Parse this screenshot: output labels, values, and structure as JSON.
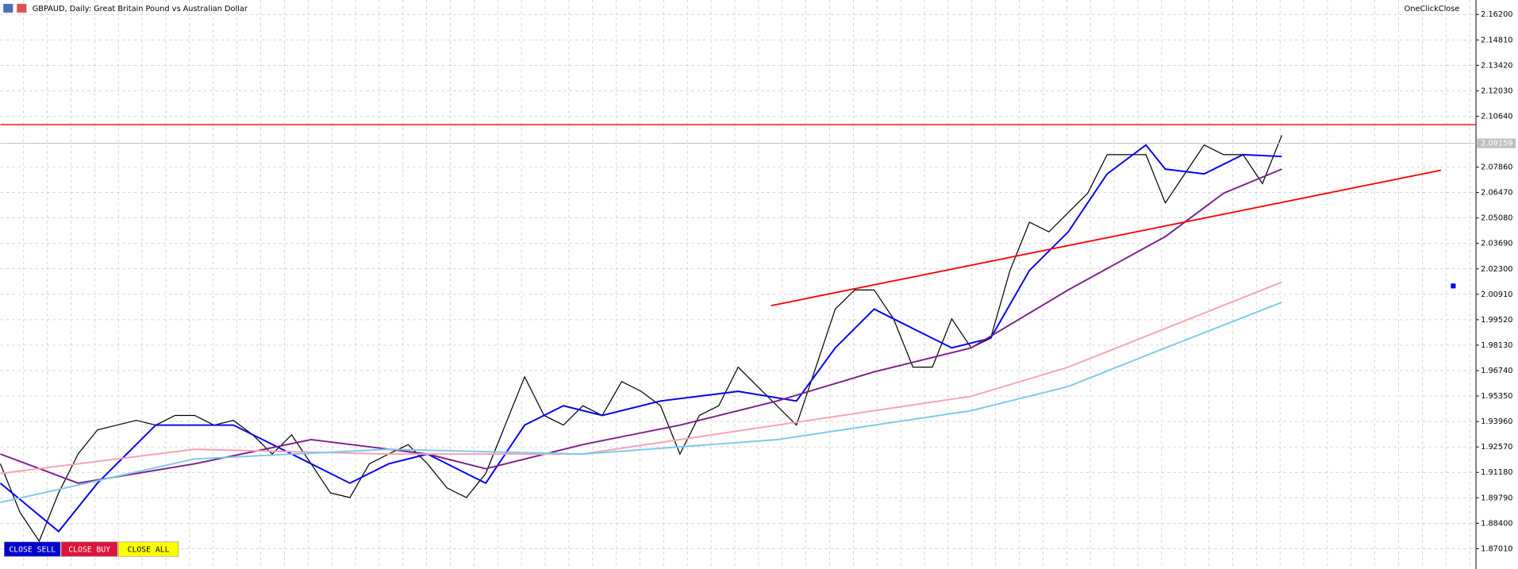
{
  "header": {
    "title": "GBPAUD, Daily:  Great Britain Pound vs Australian Dollar",
    "plugin": "OneClickClose"
  },
  "buttons": [
    "CLOSE SELL",
    "CLOSE BUY",
    "CLOSE ALL"
  ],
  "chart_data": {
    "type": "line",
    "xlim": [
      0,
      76
    ],
    "ylim": [
      1.859,
      2.1699
    ],
    "yticks": [
      {
        "value": 2.162,
        "label": "2.16200"
      },
      {
        "value": 2.1481,
        "label": "2.14810"
      },
      {
        "value": 2.1342,
        "label": "2.13420"
      },
      {
        "value": 2.1203,
        "label": "2.12030"
      },
      {
        "value": 2.1064,
        "label": "2.10640"
      },
      {
        "value": 2.0786,
        "label": "2.07860"
      },
      {
        "value": 2.0647,
        "label": "2.06470"
      },
      {
        "value": 2.0508,
        "label": "2.05080"
      },
      {
        "value": 2.0369,
        "label": "2.03690"
      },
      {
        "value": 2.023,
        "label": "2.02300"
      },
      {
        "value": 2.0091,
        "label": "2.00910"
      },
      {
        "value": 1.9952,
        "label": "1.99520"
      },
      {
        "value": 1.9813,
        "label": "1.98130"
      },
      {
        "value": 1.9674,
        "label": "1.96740"
      },
      {
        "value": 1.9535,
        "label": "1.95350"
      },
      {
        "value": 1.9396,
        "label": "1.93960"
      },
      {
        "value": 1.9257,
        "label": "1.92570"
      },
      {
        "value": 1.9118,
        "label": "1.91180"
      },
      {
        "value": 1.8979,
        "label": "1.89790"
      },
      {
        "value": 1.884,
        "label": "1.88400"
      },
      {
        "value": 1.8701,
        "label": "1.87010"
      }
    ],
    "grid": true,
    "current_price": {
      "value": 2.09159,
      "label": "2.09159"
    },
    "levels": [
      {
        "value": 2.1018,
        "color": "#ff0000"
      }
    ],
    "trendline": {
      "x": [
        39.7,
        74.2
      ],
      "values": [
        2.0029,
        2.0769
      ],
      "color": "#ff0000"
    },
    "series": [
      {
        "color": "#000000",
        "x": [
          0,
          1,
          2,
          3,
          4,
          5,
          6,
          7,
          8,
          9,
          10,
          11,
          12,
          13,
          14,
          15,
          16,
          17,
          18,
          19,
          20,
          21,
          22,
          23,
          24,
          25,
          26,
          27,
          28,
          29,
          30,
          31,
          32,
          33,
          34,
          35,
          36,
          37,
          38,
          39,
          40,
          41,
          42,
          43,
          44,
          45,
          46,
          47,
          48,
          49,
          50,
          51,
          52,
          53,
          54,
          55,
          56,
          57,
          58,
          59,
          60,
          61,
          62,
          63,
          64,
          65,
          66
        ],
        "values": [
          1.9165,
          1.8901,
          1.8742,
          1.9006,
          1.9218,
          1.935,
          1.9376,
          1.9402,
          1.9376,
          1.9429,
          1.9429,
          1.9376,
          1.9402,
          1.9323,
          1.9218,
          1.9323,
          1.9165,
          1.9006,
          1.898,
          1.9165,
          1.9218,
          1.927,
          1.9165,
          1.9033,
          1.898,
          1.9112,
          1.9376,
          1.964,
          1.9429,
          1.9376,
          1.9482,
          1.9429,
          1.9614,
          1.9561,
          1.9482,
          1.9218,
          1.9429,
          1.9482,
          1.9693,
          1.9587,
          1.9482,
          1.9376,
          1.9693,
          2.001,
          2.0115,
          2.0115,
          1.9957,
          1.9693,
          1.9693,
          1.9957,
          1.9798,
          1.9851,
          2.0221,
          2.0485,
          2.0432,
          2.0538,
          2.0643,
          2.0854,
          2.0854,
          2.0854,
          2.059,
          2.0749,
          2.0907,
          2.0854,
          2.0854,
          2.0696,
          2.096
        ]
      },
      {
        "color": "#0000ee",
        "x": [
          0,
          3,
          5,
          8,
          12,
          15,
          18,
          20,
          22,
          25,
          27,
          29,
          31,
          34,
          38,
          41,
          43,
          45,
          47,
          49,
          51,
          53,
          55,
          57,
          59,
          60,
          62,
          64,
          66
        ],
        "values": [
          1.9059,
          1.8795,
          1.9059,
          1.9376,
          1.9376,
          1.9218,
          1.9059,
          1.9165,
          1.9218,
          1.9059,
          1.9376,
          1.9482,
          1.9429,
          1.9508,
          1.9561,
          1.9508,
          1.9798,
          2.001,
          1.9904,
          1.9798,
          1.9851,
          2.0221,
          2.0432,
          2.0749,
          2.0907,
          2.0775,
          2.0749,
          2.0854,
          2.0844
        ]
      },
      {
        "color": "#7b1f8a",
        "x": [
          0,
          4,
          10,
          16,
          22,
          25,
          30,
          35,
          40,
          45,
          50,
          55,
          60,
          63,
          66
        ],
        "values": [
          1.9218,
          1.9059,
          1.9165,
          1.9297,
          1.9218,
          1.9138,
          1.927,
          1.9376,
          1.9508,
          1.9667,
          1.9798,
          2.0115,
          2.0406,
          2.0643,
          2.0775
        ]
      },
      {
        "color": "#f5a3b5",
        "x": [
          0,
          10,
          20,
          30,
          40,
          50,
          55,
          60,
          66
        ],
        "values": [
          1.9112,
          1.9244,
          1.9218,
          1.9218,
          1.9376,
          1.9534,
          1.9693,
          1.9904,
          2.0157
        ]
      },
      {
        "color": "#7ec8ef",
        "x": [
          0,
          10,
          20,
          30,
          40,
          50,
          55,
          60,
          66
        ],
        "values": [
          1.8954,
          1.9191,
          1.9244,
          1.9218,
          1.9297,
          1.9455,
          1.9587,
          1.9798,
          2.0047
        ]
      }
    ]
  }
}
